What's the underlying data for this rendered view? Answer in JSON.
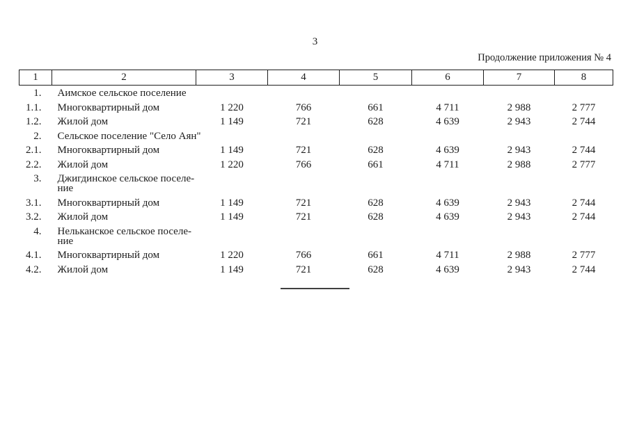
{
  "page": {
    "number": "3",
    "caption": "Продолжение приложения № 4"
  },
  "table": {
    "header": [
      "1",
      "2",
      "3",
      "4",
      "5",
      "6",
      "7",
      "8"
    ],
    "rows": [
      {
        "num": "1.",
        "name": "Аимское сельское поселение",
        "values": [
          "",
          "",
          "",
          "",
          "",
          ""
        ]
      },
      {
        "num": "1.1.",
        "name": "Многоквартирный дом",
        "values": [
          "1 220",
          "766",
          "661",
          "4 711",
          "2 988",
          "2 777"
        ]
      },
      {
        "num": "1.2.",
        "name": "Жилой дом",
        "values": [
          "1 149",
          "721",
          "628",
          "4 639",
          "2 943",
          "2 744"
        ]
      },
      {
        "num": "2.",
        "name": "Сельское поселение \"Село Аян\"",
        "values": [
          "",
          "",
          "",
          "",
          "",
          ""
        ]
      },
      {
        "num": "2.1.",
        "name": "Многоквартирный дом",
        "values": [
          "1 149",
          "721",
          "628",
          "4 639",
          "2 943",
          "2 744"
        ]
      },
      {
        "num": "2.2.",
        "name": "Жилой дом",
        "values": [
          "1 220",
          "766",
          "661",
          "4 711",
          "2 988",
          "2 777"
        ]
      },
      {
        "num": "3.",
        "name": "Джигдинское сельское поселе-\nние",
        "values": [
          "",
          "",
          "",
          "",
          "",
          ""
        ]
      },
      {
        "num": "3.1.",
        "name": "Многоквартирный дом",
        "values": [
          "1 149",
          "721",
          "628",
          "4 639",
          "2 943",
          "2 744"
        ]
      },
      {
        "num": "3.2.",
        "name": "Жилой дом",
        "values": [
          "1 149",
          "721",
          "628",
          "4 639",
          "2 943",
          "2 744"
        ]
      },
      {
        "num": "4.",
        "name": "Нельканское сельское поселе-\nние",
        "values": [
          "",
          "",
          "",
          "",
          "",
          ""
        ]
      },
      {
        "num": "4.1.",
        "name": "Многоквартирный дом",
        "values": [
          "1 220",
          "766",
          "661",
          "4 711",
          "2 988",
          "2 777"
        ]
      },
      {
        "num": "4.2.",
        "name": "Жилой дом",
        "values": [
          "1 149",
          "721",
          "628",
          "4 639",
          "2 943",
          "2 744"
        ]
      }
    ]
  },
  "colors": {
    "text": "#1c1c1c",
    "border": "#1c1c1c",
    "rule": "#3f3f3f"
  }
}
